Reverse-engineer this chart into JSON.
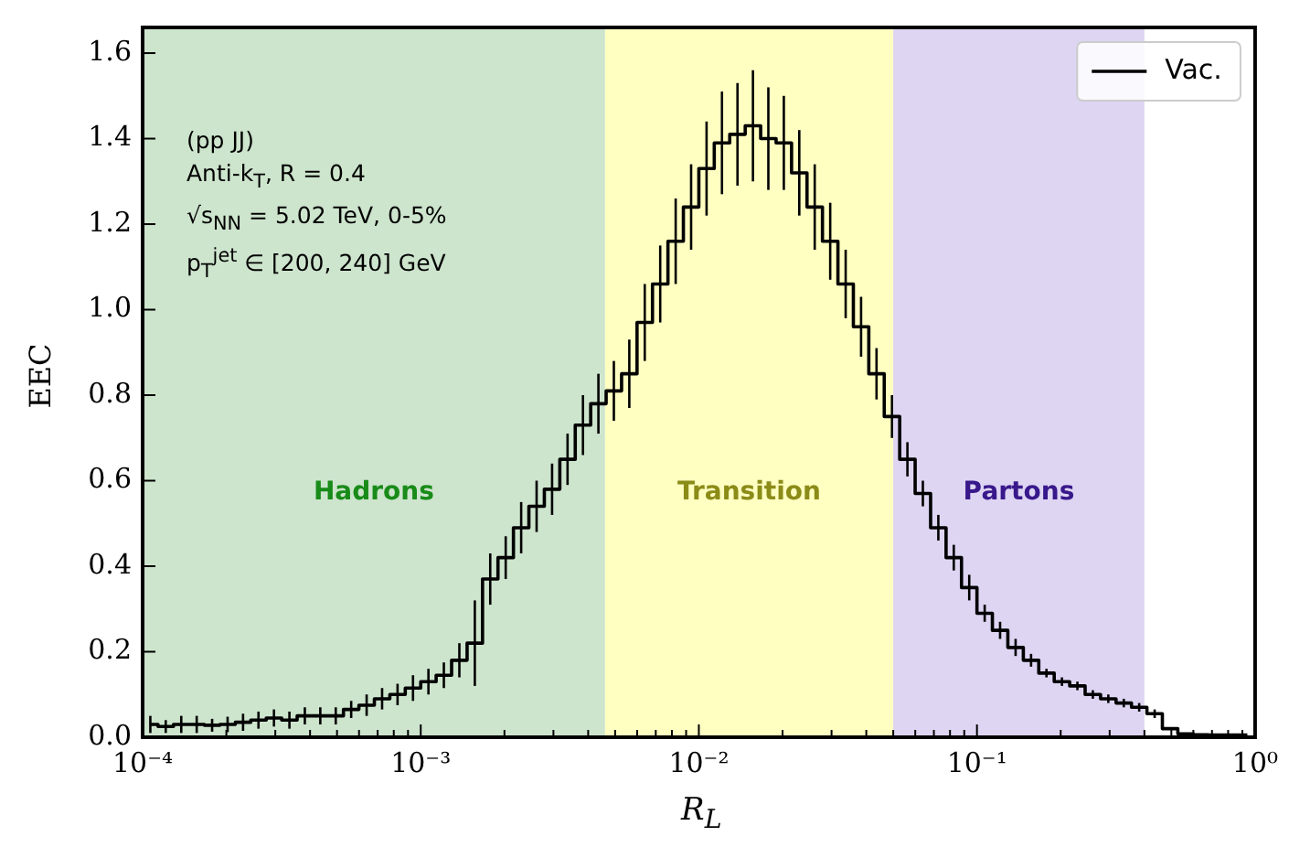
{
  "chart_data": {
    "type": "step",
    "xlabel": "R$_{L}$",
    "ylabel": "EEC",
    "log": "x",
    "xlim": [
      0.0001,
      1
    ],
    "ylim": [
      0,
      1.66
    ],
    "xticks": [
      {
        "value": 0.0001,
        "label": "10⁻⁴"
      },
      {
        "value": 0.0002,
        "label": null
      },
      {
        "value": 0.0003,
        "label": null
      },
      {
        "value": 0.0004,
        "label": null
      },
      {
        "value": 0.0005,
        "label": null
      },
      {
        "value": 0.0006,
        "label": null
      },
      {
        "value": 0.0007,
        "label": null
      },
      {
        "value": 0.0008,
        "label": null
      },
      {
        "value": 0.0009,
        "label": null
      },
      {
        "value": 0.001,
        "label": "10⁻³"
      },
      {
        "value": 0.002,
        "label": null
      },
      {
        "value": 0.003,
        "label": null
      },
      {
        "value": 0.004,
        "label": null
      },
      {
        "value": 0.005,
        "label": null
      },
      {
        "value": 0.006,
        "label": null
      },
      {
        "value": 0.007,
        "label": null
      },
      {
        "value": 0.008,
        "label": null
      },
      {
        "value": 0.009,
        "label": null
      },
      {
        "value": 0.01,
        "label": "10⁻²"
      },
      {
        "value": 0.02,
        "label": null
      },
      {
        "value": 0.03,
        "label": null
      },
      {
        "value": 0.04,
        "label": null
      },
      {
        "value": 0.05,
        "label": null
      },
      {
        "value": 0.06,
        "label": null
      },
      {
        "value": 0.07,
        "label": null
      },
      {
        "value": 0.08,
        "label": null
      },
      {
        "value": 0.09,
        "label": null
      },
      {
        "value": 0.1,
        "label": "10⁻¹"
      },
      {
        "value": 0.2,
        "label": null
      },
      {
        "value": 0.3,
        "label": null
      },
      {
        "value": 0.4,
        "label": null
      },
      {
        "value": 0.5,
        "label": null
      },
      {
        "value": 0.6,
        "label": null
      },
      {
        "value": 0.7,
        "label": null
      },
      {
        "value": 0.8,
        "label": null
      },
      {
        "value": 0.9,
        "label": null
      },
      {
        "value": 1,
        "label": "10⁰"
      }
    ],
    "yticks": [
      {
        "value": 0,
        "label": "0.0"
      },
      {
        "value": 0.2,
        "label": "0.2"
      },
      {
        "value": 0.4,
        "label": "0.4"
      },
      {
        "value": 0.6,
        "label": "0.6"
      },
      {
        "value": 0.8,
        "label": "0.8"
      },
      {
        "value": 1,
        "label": "1.0"
      },
      {
        "value": 1.2,
        "label": "1.2"
      },
      {
        "value": 1.4,
        "label": "1.4"
      },
      {
        "value": 1.6,
        "label": "1.6"
      }
    ],
    "x": [
      0.0001066,
      0.0001211,
      0.0001377,
      0.0001565,
      0.0001778,
      0.0002021,
      0.0002297,
      0.000261,
      0.0002967,
      0.0003372,
      0.0003831,
      0.0004354,
      0.0004948,
      0.0005623,
      0.000639,
      0.0007263,
      0.0008254,
      0.000938,
      0.001066,
      0.001211,
      0.001377,
      0.001565,
      0.001778,
      0.002021,
      0.002297,
      0.00261,
      0.002967,
      0.003372,
      0.003831,
      0.004354,
      0.004948,
      0.005623,
      0.00639,
      0.007263,
      0.008254,
      0.00938,
      0.01066,
      0.01211,
      0.01377,
      0.01565,
      0.01778,
      0.02021,
      0.02297,
      0.0261,
      0.02967,
      0.03372,
      0.03831,
      0.04354,
      0.04948,
      0.05623,
      0.0639,
      0.07263,
      0.08254,
      0.0938,
      0.1066,
      0.1211,
      0.1377,
      0.1565,
      0.1778,
      0.2021,
      0.2297,
      0.261,
      0.2967,
      0.3372,
      0.3831,
      0.4354,
      0.4948,
      0.5623,
      0.639,
      0.7263,
      0.8254,
      0.938
    ],
    "series": [
      {
        "name": "Vac.",
        "color": "#000000",
        "values": [
          0.03,
          0.025,
          0.03,
          0.03,
          0.028,
          0.03,
          0.035,
          0.04,
          0.045,
          0.04,
          0.05,
          0.05,
          0.05,
          0.065,
          0.075,
          0.09,
          0.1,
          0.115,
          0.13,
          0.145,
          0.18,
          0.22,
          0.37,
          0.42,
          0.49,
          0.54,
          0.58,
          0.65,
          0.73,
          0.78,
          0.81,
          0.85,
          0.97,
          1.06,
          1.16,
          1.24,
          1.33,
          1.39,
          1.41,
          1.43,
          1.4,
          1.39,
          1.32,
          1.24,
          1.16,
          1.06,
          0.96,
          0.85,
          0.75,
          0.65,
          0.57,
          0.49,
          0.42,
          0.35,
          0.29,
          0.25,
          0.21,
          0.18,
          0.15,
          0.13,
          0.12,
          0.1,
          0.09,
          0.08,
          0.07,
          0.055,
          0.02,
          0.008,
          0.006,
          0.005,
          0.005,
          0.005
        ],
        "errors": [
          0.02,
          0.015,
          0.02,
          0.02,
          0.015,
          0.018,
          0.02,
          0.02,
          0.02,
          0.02,
          0.02,
          0.02,
          0.02,
          0.02,
          0.025,
          0.025,
          0.025,
          0.03,
          0.03,
          0.03,
          0.04,
          0.1,
          0.06,
          0.05,
          0.06,
          0.06,
          0.06,
          0.06,
          0.07,
          0.07,
          0.07,
          0.08,
          0.09,
          0.09,
          0.1,
          0.1,
          0.11,
          0.12,
          0.12,
          0.13,
          0.12,
          0.11,
          0.1,
          0.1,
          0.09,
          0.08,
          0.07,
          0.06,
          0.05,
          0.04,
          0.03,
          0.03,
          0.03,
          0.03,
          0.02,
          0.02,
          0.02,
          0.015,
          0.01,
          0.01,
          0.01,
          0.01,
          0.01,
          0.01,
          0.01,
          0.01,
          null,
          null,
          null,
          null,
          null,
          null
        ]
      }
    ],
    "bands": [
      {
        "axis": "x",
        "from": 0.0001,
        "to": 0.0046,
        "label": "Hadrons",
        "color": "#cde4cd"
      },
      {
        "axis": "x",
        "from": 0.0046,
        "to": 0.05,
        "label": "Transition",
        "color": "#ffffc2"
      },
      {
        "axis": "x",
        "from": 0.05,
        "to": 0.4,
        "label": "Partons",
        "color": "#ddd5f2"
      }
    ],
    "annotations": [
      "(pp JJ)",
      "Anti-k$_{T}$, R = 0.4",
      "√s$_{NN}$ = 5.02 TeV, 0-5%",
      "p$_{T}$$^{jet}$ ∈ [200, 240] GeV"
    ],
    "legend": "top right"
  }
}
